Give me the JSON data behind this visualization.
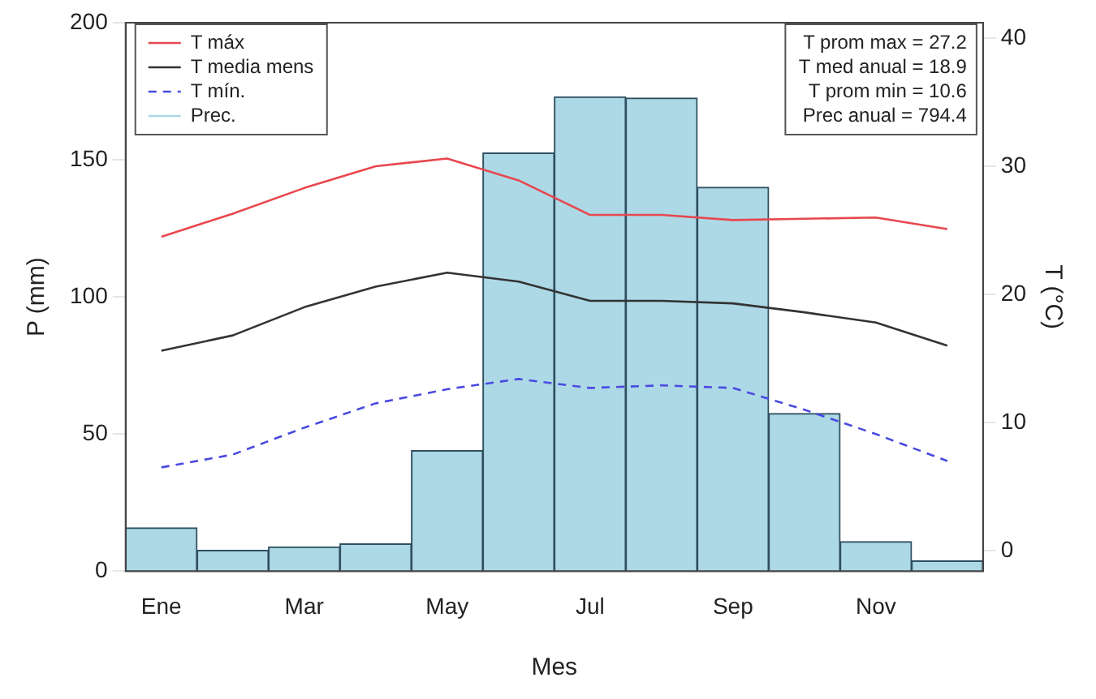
{
  "chart_data": {
    "type": "bar",
    "xlabel": "Mes",
    "ylabel": "P (mm)",
    "y2label": "T (°C)",
    "categories": [
      "Ene",
      null,
      "Mar",
      null,
      "May",
      null,
      "Jul",
      null,
      "Sep",
      null,
      "Nov",
      null
    ],
    "series": [
      {
        "name": "T máx",
        "type": "line",
        "axis": "y2",
        "color": "#e8474f",
        "line_style": "solid",
        "values": [
          24.5,
          26.3,
          28.3,
          30,
          30.6,
          28.9,
          26.2,
          26.2,
          25.8,
          25.9,
          26.0,
          25.1
        ]
      },
      {
        "name": "T media mens",
        "type": "line",
        "axis": "y2",
        "color": "#333333",
        "line_style": "solid",
        "values": [
          15.6,
          16.8,
          19,
          20.6,
          21.7,
          21,
          19.5,
          19.5,
          19.3,
          18.6,
          17.8,
          16
        ]
      },
      {
        "name": "T mín.",
        "type": "line",
        "axis": "y2",
        "color": "#4a4ae0",
        "line_style": "dashed",
        "values": [
          6.5,
          7.5,
          9.6,
          11.5,
          12.6,
          13.4,
          12.7,
          12.9,
          12.7,
          11,
          9.1,
          7
        ]
      },
      {
        "name": "Prec.",
        "color": "#add8e6",
        "values": [
          15.8,
          7.6,
          8.9,
          10,
          44,
          152.5,
          173,
          172.5,
          140,
          57.5,
          10.8,
          3.8
        ]
      }
    ],
    "ylim": [
      0,
      200
    ],
    "yticks": [
      0,
      50,
      100,
      150,
      200
    ],
    "y2lim": [
      -1.6,
      41.2
    ],
    "y2ticks": [
      0,
      10,
      20,
      30,
      40
    ],
    "grid": false,
    "legend": "top left",
    "marker": "none",
    "annotations": [
      "T prom max = 27.2",
      "T med anual = 18.9",
      "T prom min = 10.6",
      "Prec anual = 794.4"
    ]
  }
}
